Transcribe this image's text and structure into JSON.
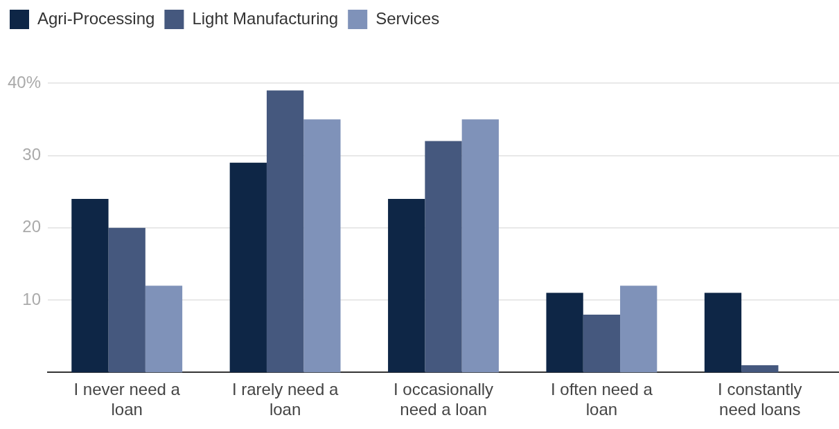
{
  "chart_data": {
    "type": "bar",
    "categories": [
      "I never need a loan",
      "I rarely need a loan",
      "I occasionally need a loan",
      "I often need a loan",
      "I constantly need loans"
    ],
    "series": [
      {
        "name": "Agri-Processing",
        "color": "#0e2646",
        "values": [
          24,
          29,
          24,
          11,
          11
        ]
      },
      {
        "name": "Light Manufacturing",
        "color": "#45587e",
        "values": [
          20,
          39,
          32,
          8,
          1
        ]
      },
      {
        "name": "Services",
        "color": "#7f92b9",
        "values": [
          12,
          35,
          35,
          12,
          0
        ]
      }
    ],
    "ylim": [
      0,
      40
    ],
    "yticks": [
      10,
      20,
      30,
      {
        "value": 40,
        "label": "40%"
      }
    ],
    "grid": "y",
    "legend": "top left"
  }
}
